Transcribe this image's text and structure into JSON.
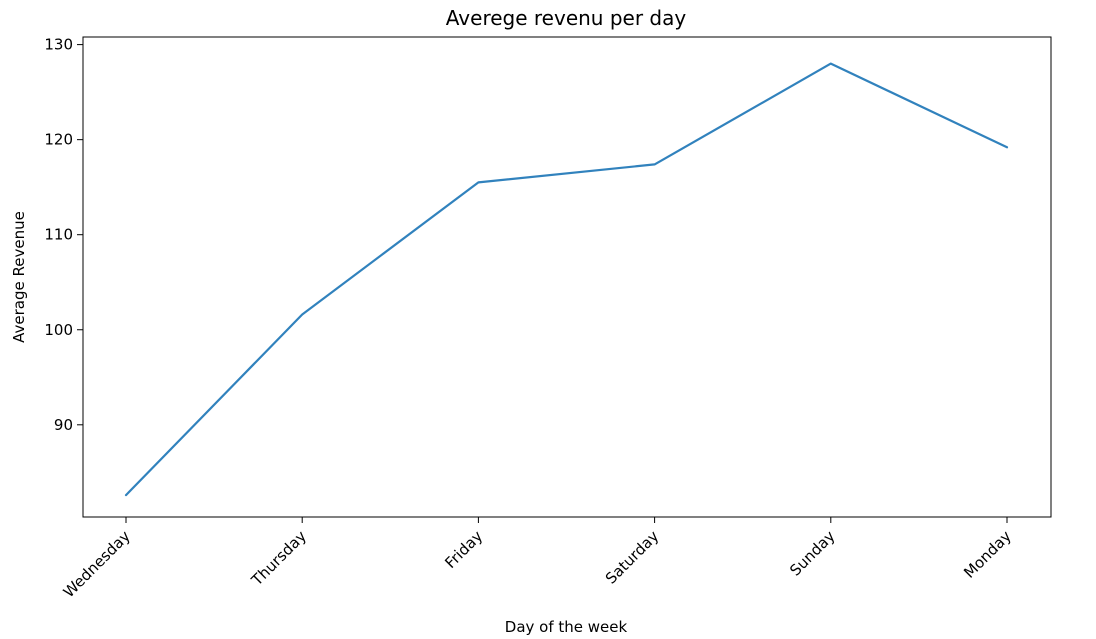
{
  "chart_data": {
    "type": "line",
    "title": "Averege revenu per day",
    "xlabel": "Day of the week",
    "ylabel": "Average Revenue",
    "categories": [
      "Wednesday",
      "Thursday",
      "Friday",
      "Saturday",
      "Sunday",
      "Monday"
    ],
    "values": [
      82.6,
      101.6,
      115.5,
      117.4,
      128.0,
      119.2
    ],
    "ylim": [
      80.3,
      130.8
    ],
    "yticks": [
      90,
      100,
      110,
      120,
      130
    ],
    "grid": false,
    "legend": "none",
    "line_color": "#3182bd"
  }
}
